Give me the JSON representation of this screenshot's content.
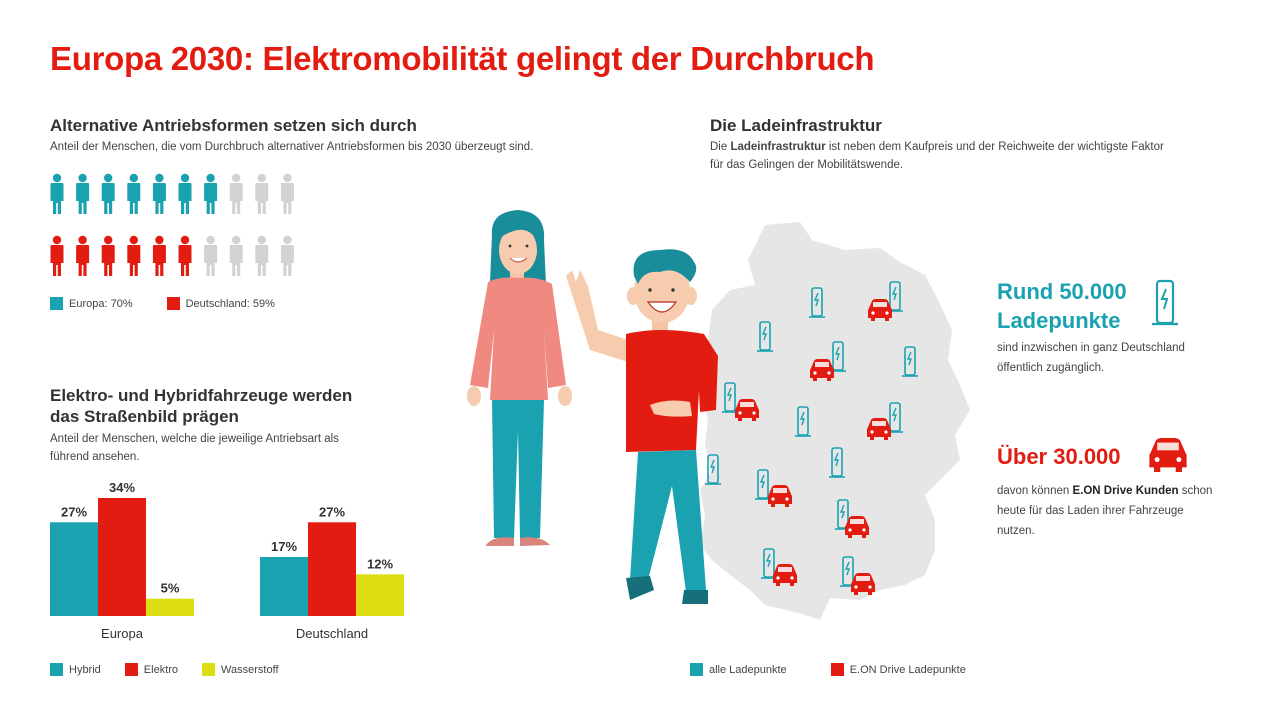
{
  "title": "Europa 2030: Elektromobilität gelingt der Durchbruch",
  "colors": {
    "teal": "#1aa2b0",
    "red": "#e31c12",
    "yellow": "#dddd14",
    "gray": "#d2d2d2",
    "map": "#e6e6e6"
  },
  "section1": {
    "heading": "Alternative Antriebsformen setzen sich durch",
    "subtitle": "Anteil der Menschen, die vom Durchbruch alternativer Antriebsformen bis 2030 überzeugt sind.",
    "legend": [
      {
        "label": "Europa: 70%",
        "color": "#1aa2b0"
      },
      {
        "label": "Deutschland: 59%",
        "color": "#e31c12"
      }
    ]
  },
  "section2": {
    "heading_line1": "Elektro- und Hybridfahrzeuge werden",
    "heading_line2": "das Straßenbild prägen",
    "subtitle_line1": "Anteil der Menschen, welche die jeweilige Antriebsart als",
    "subtitle_line2": "führend ansehen.",
    "legend": [
      {
        "label": "Hybrid",
        "color": "#1aa2b0"
      },
      {
        "label": "Elektro",
        "color": "#e31c12"
      },
      {
        "label": "Wasserstoff",
        "color": "#dddd14"
      }
    ]
  },
  "section3": {
    "heading": "Die Ladeinfrastruktur",
    "text_pre": "Die ",
    "text_bold": "Ladeinfrastruktur",
    "text_post": " ist neben dem Kaufpreis und der Reichweite der wichtigste Faktor",
    "text_line2": "für das Gelingen der Mobilitätswende.",
    "stat1_line1": "Rund 50.000",
    "stat1_line2": "Ladepunkte",
    "stat1_text1": "sind inzwischen in ganz Deutschland",
    "stat1_text2": "öffentlich zugänglich.",
    "stat2_value": "Über 30.000",
    "stat2_text1_pre": "davon können ",
    "stat2_text1_bold": "E.ON Drive Kunden",
    "stat2_text1_post": " schon",
    "stat2_text2": "heute für das Laden ihrer Fahrzeuge",
    "stat2_text3": "nutzen.",
    "legend": [
      {
        "label": "alle Ladepunkte",
        "color": "#1aa2b0"
      },
      {
        "label": "E.ON Drive Ladepunkte",
        "color": "#e31c12"
      }
    ]
  },
  "chart_data": [
    {
      "type": "pictogram",
      "total": 10,
      "series": [
        {
          "name": "Europa",
          "value": 70,
          "filled": 7,
          "color": "#1aa2b0"
        },
        {
          "name": "Deutschland",
          "value": 59,
          "filled": 6,
          "color": "#e31c12"
        }
      ]
    },
    {
      "type": "bar",
      "categories": [
        "Europa",
        "Deutschland"
      ],
      "series": [
        {
          "name": "Hybrid",
          "values": [
            27,
            17
          ],
          "labels": [
            "27%",
            "17%"
          ],
          "color": "#1aa2b0"
        },
        {
          "name": "Elektro",
          "values": [
            34,
            27
          ],
          "labels": [
            "34%",
            "27%"
          ],
          "color": "#e31c12"
        },
        {
          "name": "Wasserstoff",
          "values": [
            5,
            12
          ],
          "labels": [
            "5%",
            "12%"
          ],
          "color": "#dddd14"
        }
      ],
      "ylim": [
        0,
        34
      ],
      "grid": false
    }
  ]
}
